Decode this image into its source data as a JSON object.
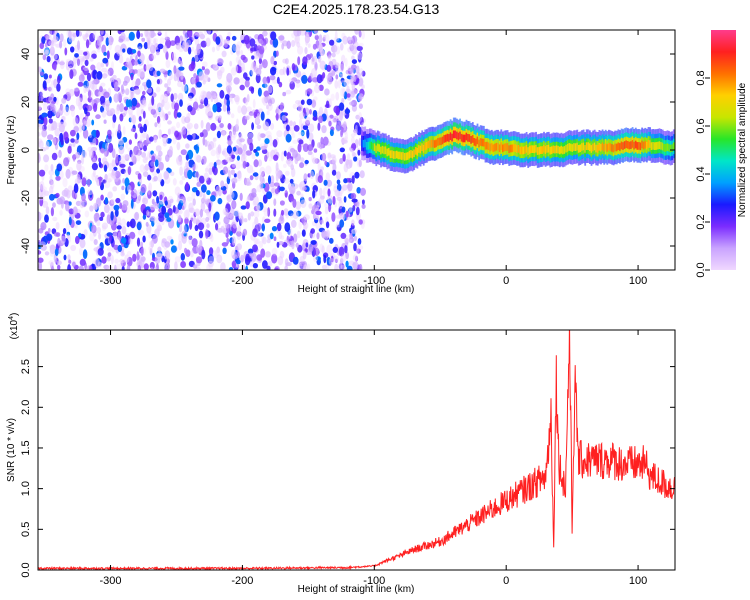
{
  "title": "C2E4.2025.178.23.54.G13",
  "chart_data": [
    {
      "type": "heatmap",
      "xlabel": "Height of straight line (km)",
      "ylabel": "Frequency (Hz)",
      "xlim": [
        -355,
        128
      ],
      "ylim": [
        -50,
        50
      ],
      "x_ticks": [
        -300,
        -200,
        -100,
        0,
        100
      ],
      "y_ticks": [
        -40,
        -20,
        0,
        20,
        40
      ],
      "colorbar": {
        "label": "Normalized spectral amplitude",
        "range": [
          0,
          1
        ],
        "ticks": [
          0.0,
          0.2,
          0.4,
          0.6,
          0.8
        ],
        "colors": [
          "#f0d8ff",
          "#c9a3ff",
          "#7b2cff",
          "#1a1aff",
          "#00a0ff",
          "#00e6c8",
          "#28e628",
          "#c8e600",
          "#ffd000",
          "#ff7000",
          "#ff2020",
          "#ff3c8c"
        ]
      },
      "noise_region": {
        "x": [
          -355,
          -108
        ],
        "y": [
          -50,
          50
        ],
        "amplitude": [
          0.0,
          0.35
        ]
      },
      "signal_track": {
        "x": [
          -110,
          -100,
          -90,
          -80,
          -70,
          -60,
          -50,
          -40,
          -30,
          -20,
          -10,
          0,
          10,
          20,
          30,
          40,
          50,
          60,
          70,
          80,
          90,
          100,
          110,
          120,
          128
        ],
        "freq": [
          3,
          1,
          -1,
          -3,
          -1,
          2,
          4,
          6,
          5,
          3,
          1,
          1,
          0,
          0,
          0,
          0,
          1,
          1,
          1,
          1,
          2,
          2,
          2,
          1,
          1
        ],
        "amplitude": [
          0.3,
          0.65,
          0.7,
          0.7,
          0.72,
          0.75,
          0.85,
          0.92,
          0.88,
          0.82,
          0.78,
          0.8,
          0.75,
          0.72,
          0.75,
          0.7,
          0.7,
          0.72,
          0.75,
          0.8,
          0.85,
          0.85,
          0.7,
          0.6,
          0.55
        ]
      }
    },
    {
      "type": "line",
      "xlabel": "Height of straight line (km)",
      "ylabel": "SNR (10 * v/v)",
      "y_multiplier": "(x10",
      "y_multiplier_exp": "4",
      "y_multiplier_close": ")",
      "xlim": [
        -355,
        128
      ],
      "ylim": [
        0,
        2.95
      ],
      "x_ticks": [
        -300,
        -200,
        -100,
        0,
        100
      ],
      "y_ticks": [
        0.0,
        0.5,
        1.0,
        1.5,
        2.0,
        2.5
      ],
      "y_tick_labels": [
        "0.0",
        "0.5",
        "1.0",
        "1.5",
        "2.0",
        "2.5"
      ],
      "series": [
        {
          "color": "#ff2020",
          "x": [
            -355,
            -300,
            -200,
            -120,
            -100,
            -90,
            -80,
            -70,
            -60,
            -50,
            -40,
            -30,
            -20,
            -10,
            0,
            10,
            20,
            30,
            34,
            36,
            38,
            40,
            45,
            48,
            50,
            52,
            55,
            60,
            70,
            80,
            90,
            100,
            105,
            110,
            115,
            120,
            128
          ],
          "y": [
            0.02,
            0.02,
            0.02,
            0.03,
            0.05,
            0.12,
            0.18,
            0.25,
            0.3,
            0.35,
            0.45,
            0.55,
            0.65,
            0.75,
            0.85,
            0.95,
            1.05,
            1.15,
            1.9,
            0.3,
            2.4,
            1.3,
            1.0,
            2.95,
            0.5,
            2.3,
            1.35,
            1.35,
            1.35,
            1.35,
            1.3,
            1.3,
            1.3,
            1.15,
            1.1,
            1.05,
            1.0
          ]
        }
      ]
    }
  ]
}
